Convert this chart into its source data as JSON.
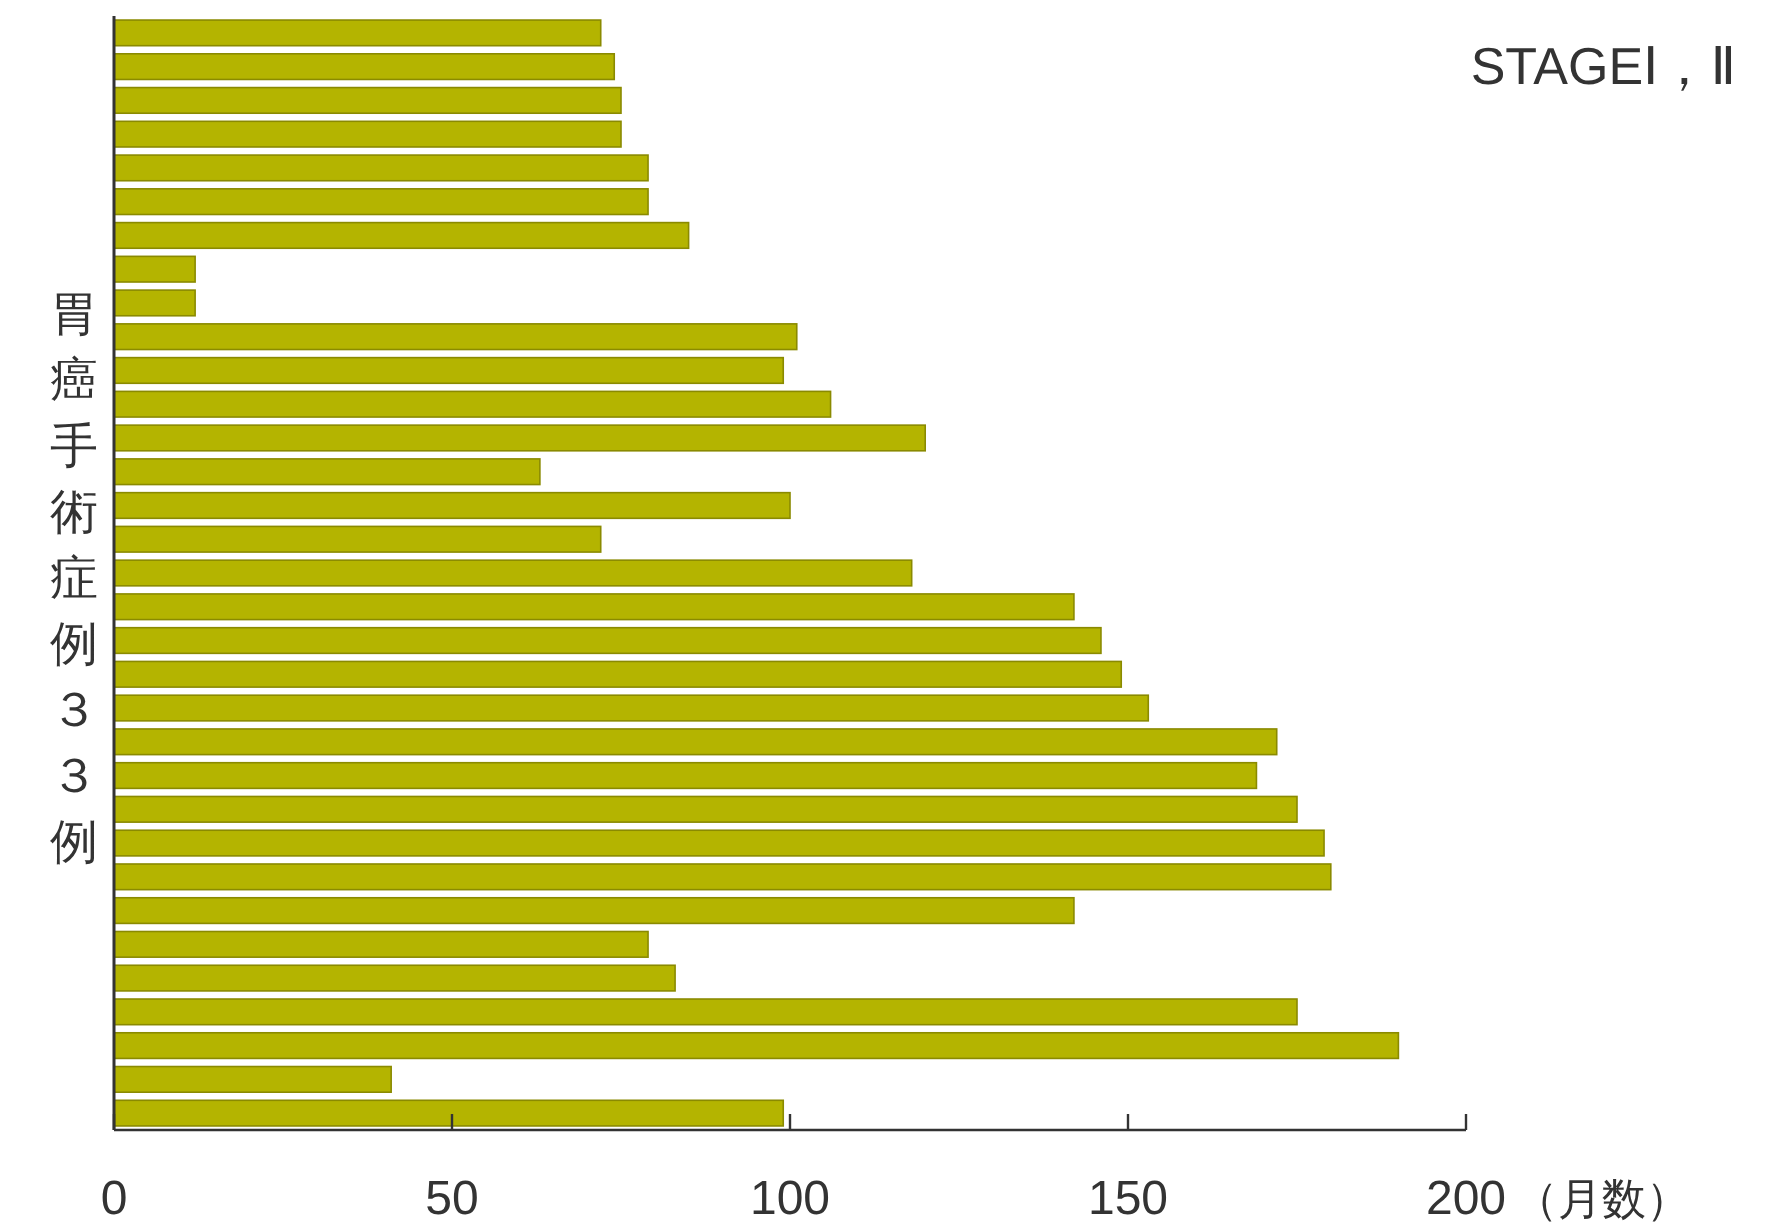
{
  "chart_data": {
    "type": "bar",
    "orientation": "horizontal",
    "title": "STAGEⅠ，Ⅱ",
    "xlabel": "（月数）",
    "ylabel": "胃癌手術症例３３例",
    "categories": [
      null,
      null,
      null,
      null,
      null,
      null,
      null,
      null,
      null,
      null,
      null,
      null,
      null,
      null,
      null,
      null,
      null,
      null,
      null,
      null,
      null,
      null,
      null,
      null,
      null,
      null,
      null,
      null,
      null,
      null,
      null,
      null,
      null
    ],
    "values": [
      72,
      74,
      75,
      75,
      79,
      79,
      85,
      12,
      12,
      101,
      99,
      106,
      120,
      63,
      100,
      72,
      118,
      142,
      146,
      149,
      153,
      172,
      169,
      175,
      179,
      180,
      142,
      79,
      83,
      175,
      190,
      41,
      99
    ],
    "color": "#b4b400",
    "xlim": [
      0,
      200
    ],
    "xticks": [
      0,
      50,
      100,
      150,
      200
    ]
  }
}
